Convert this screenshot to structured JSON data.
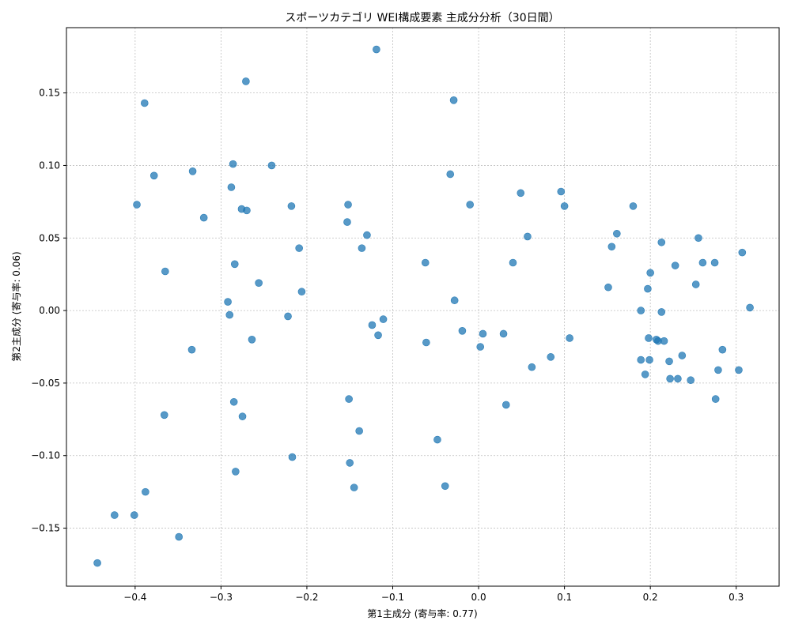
{
  "chart_data": {
    "type": "scatter",
    "title": "スポーツカテゴリ WEI構成要素 主成分分析（30日間）",
    "xlabel": "第1主成分 (寄与率: 0.77)",
    "ylabel": "第2主成分 (寄与率: 0.06)",
    "xlim": [
      -0.48,
      0.35
    ],
    "ylim": [
      -0.19,
      0.195
    ],
    "grid": true,
    "marker_color": "#1f77b4",
    "xticks": [
      -0.4,
      -0.3,
      -0.2,
      -0.1,
      0.0,
      0.1,
      0.2,
      0.3
    ],
    "xtick_labels": [
      "−0.4",
      "−0.3",
      "−0.2",
      "−0.1",
      "0.0",
      "0.1",
      "0.2",
      "0.3"
    ],
    "yticks": [
      -0.15,
      -0.1,
      -0.05,
      0.0,
      0.05,
      0.1,
      0.15
    ],
    "ytick_labels": [
      "−0.15",
      "−0.10",
      "−0.05",
      "0.00",
      "0.05",
      "0.10",
      "0.15"
    ],
    "points": [
      [
        -0.119,
        0.18
      ],
      [
        -0.271,
        0.158
      ],
      [
        -0.389,
        0.143
      ],
      [
        -0.029,
        0.145
      ],
      [
        -0.286,
        0.101
      ],
      [
        -0.241,
        0.1
      ],
      [
        -0.333,
        0.096
      ],
      [
        -0.378,
        0.093
      ],
      [
        -0.033,
        0.094
      ],
      [
        -0.288,
        0.085
      ],
      [
        0.096,
        0.082
      ],
      [
        0.049,
        0.081
      ],
      [
        -0.398,
        0.073
      ],
      [
        -0.218,
        0.072
      ],
      [
        -0.152,
        0.073
      ],
      [
        -0.01,
        0.073
      ],
      [
        0.1,
        0.072
      ],
      [
        0.18,
        0.072
      ],
      [
        -0.276,
        0.07
      ],
      [
        -0.27,
        0.069
      ],
      [
        -0.32,
        0.064
      ],
      [
        -0.153,
        0.061
      ],
      [
        -0.13,
        0.052
      ],
      [
        0.057,
        0.051
      ],
      [
        0.161,
        0.053
      ],
      [
        0.213,
        0.047
      ],
      [
        0.256,
        0.05
      ],
      [
        -0.136,
        0.043
      ],
      [
        -0.209,
        0.043
      ],
      [
        0.155,
        0.044
      ],
      [
        0.307,
        0.04
      ],
      [
        -0.062,
        0.033
      ],
      [
        0.04,
        0.033
      ],
      [
        0.229,
        0.031
      ],
      [
        0.261,
        0.033
      ],
      [
        0.275,
        0.033
      ],
      [
        -0.284,
        0.032
      ],
      [
        -0.365,
        0.027
      ],
      [
        0.2,
        0.026
      ],
      [
        -0.256,
        0.019
      ],
      [
        0.253,
        0.018
      ],
      [
        0.151,
        0.016
      ],
      [
        0.197,
        0.015
      ],
      [
        -0.206,
        0.013
      ],
      [
        -0.028,
        0.007
      ],
      [
        -0.292,
        0.006
      ],
      [
        0.316,
        0.002
      ],
      [
        0.189,
        0.0
      ],
      [
        0.213,
        -0.001
      ],
      [
        -0.222,
        -0.004
      ],
      [
        -0.29,
        -0.003
      ],
      [
        -0.111,
        -0.006
      ],
      [
        -0.124,
        -0.01
      ],
      [
        -0.019,
        -0.014
      ],
      [
        0.005,
        -0.016
      ],
      [
        0.029,
        -0.016
      ],
      [
        -0.117,
        -0.017
      ],
      [
        0.106,
        -0.019
      ],
      [
        0.198,
        -0.019
      ],
      [
        0.207,
        -0.02
      ],
      [
        -0.264,
        -0.02
      ],
      [
        0.209,
        -0.021
      ],
      [
        0.216,
        -0.021
      ],
      [
        -0.061,
        -0.022
      ],
      [
        0.002,
        -0.025
      ],
      [
        -0.334,
        -0.027
      ],
      [
        0.284,
        -0.027
      ],
      [
        0.237,
        -0.031
      ],
      [
        0.084,
        -0.032
      ],
      [
        0.189,
        -0.034
      ],
      [
        0.199,
        -0.034
      ],
      [
        0.222,
        -0.035
      ],
      [
        0.062,
        -0.039
      ],
      [
        0.279,
        -0.041
      ],
      [
        0.303,
        -0.041
      ],
      [
        0.194,
        -0.044
      ],
      [
        0.223,
        -0.047
      ],
      [
        0.232,
        -0.047
      ],
      [
        0.247,
        -0.048
      ],
      [
        -0.151,
        -0.061
      ],
      [
        0.276,
        -0.061
      ],
      [
        -0.285,
        -0.063
      ],
      [
        0.032,
        -0.065
      ],
      [
        -0.366,
        -0.072
      ],
      [
        -0.275,
        -0.073
      ],
      [
        -0.139,
        -0.083
      ],
      [
        -0.048,
        -0.089
      ],
      [
        -0.217,
        -0.101
      ],
      [
        -0.15,
        -0.105
      ],
      [
        -0.283,
        -0.111
      ],
      [
        -0.039,
        -0.121
      ],
      [
        -0.145,
        -0.122
      ],
      [
        -0.388,
        -0.125
      ],
      [
        -0.424,
        -0.141
      ],
      [
        -0.401,
        -0.141
      ],
      [
        -0.349,
        -0.156
      ],
      [
        -0.444,
        -0.174
      ]
    ]
  }
}
